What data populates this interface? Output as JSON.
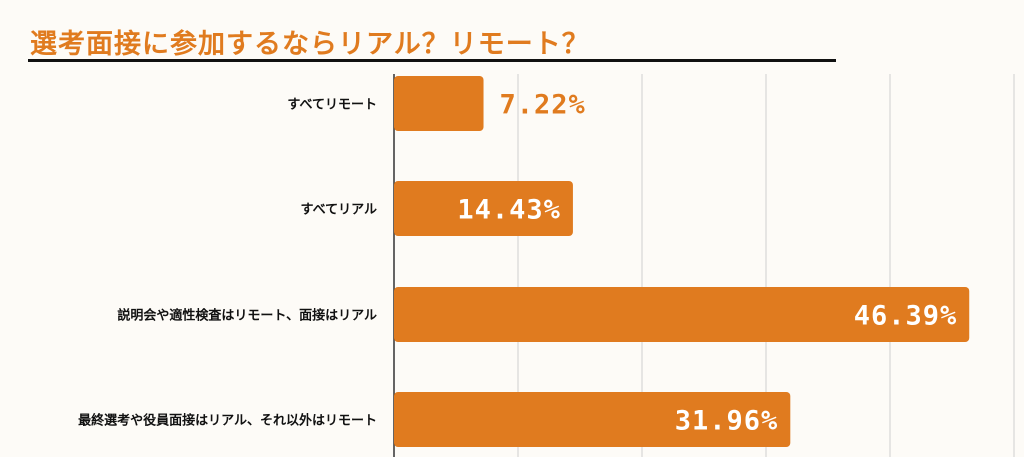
{
  "chart_data": {
    "type": "bar",
    "orientation": "horizontal",
    "title": "選考面接に参加するならリアル？リモート？",
    "categories": [
      "すべてリモート",
      "すべてリアル",
      "説明会や適性検査はリモート、面接はリアル",
      "最終選考や役員面接はリアル、それ以外はリモート"
    ],
    "values": [
      7.22,
      14.43,
      46.39,
      31.96
    ],
    "value_labels": [
      "7.22%",
      "14.43%",
      "46.39%",
      "31.96%"
    ],
    "xlim": [
      0,
      50
    ],
    "grid": true,
    "legend": "none"
  },
  "colors": {
    "bar": "#e07b1f",
    "title": "#e07b1f",
    "label_inside": "#ffffff",
    "label_outside": "#e07b1f",
    "grid": "#cfcfcf",
    "axis": "#333333",
    "category_text": "#111111"
  }
}
